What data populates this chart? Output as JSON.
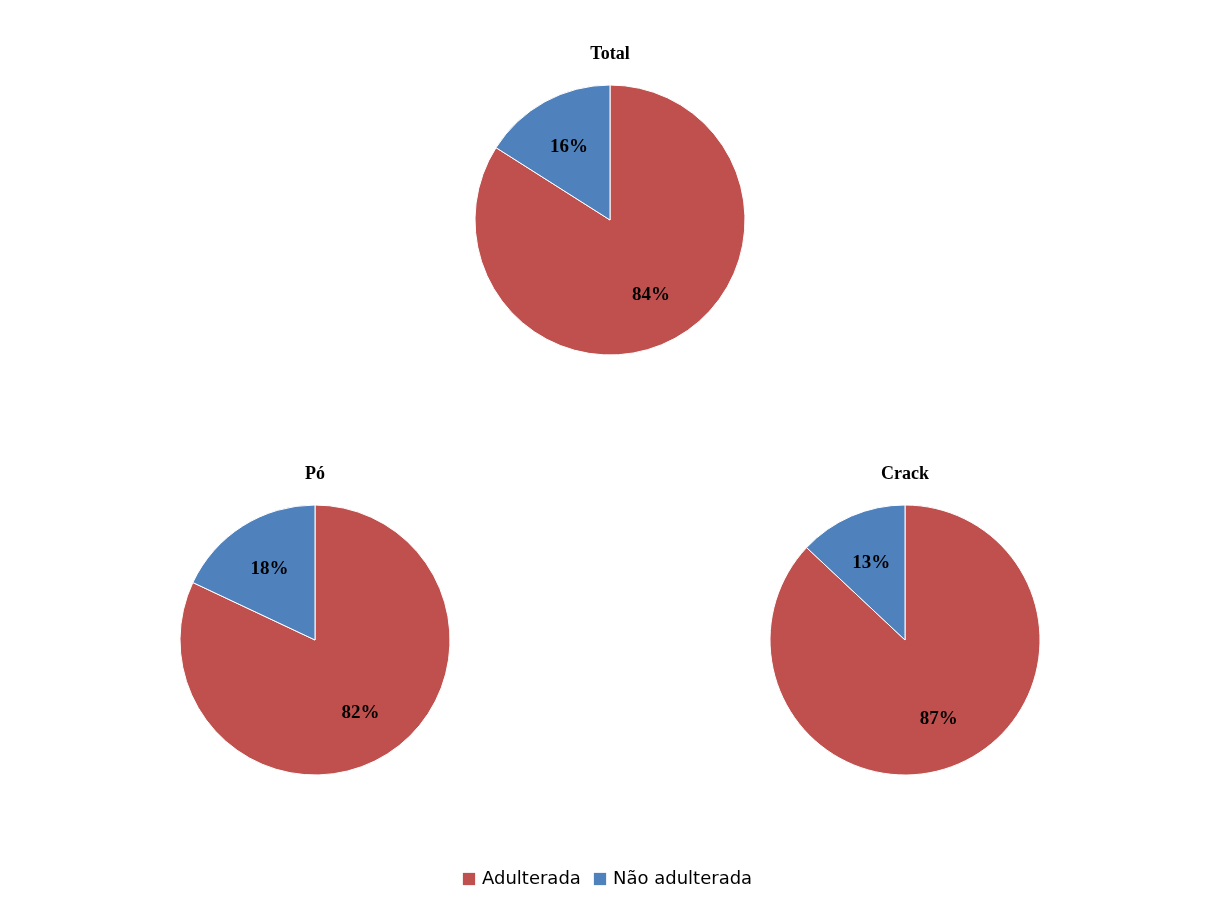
{
  "chart_data": [
    {
      "type": "pie",
      "title": "Total",
      "categories": [
        "Adulterada",
        "Não adulterada"
      ],
      "values": [
        84,
        16
      ],
      "colors": [
        "#c0504d",
        "#4f81bd"
      ],
      "value_labels": [
        "84%",
        "16%"
      ],
      "legend": "bottom"
    },
    {
      "type": "pie",
      "title": "Pó",
      "categories": [
        null,
        null
      ],
      "values": [
        82,
        18
      ],
      "colors": [
        "#c0504d",
        "#4f81bd"
      ],
      "value_labels": [
        "82%",
        "18%"
      ]
    },
    {
      "type": "pie",
      "title": "Crack",
      "categories": [
        null,
        null
      ],
      "values": [
        87,
        13
      ],
      "colors": [
        "#c0504d",
        "#4f81bd"
      ],
      "value_labels": [
        "87%",
        "13%"
      ]
    }
  ]
}
